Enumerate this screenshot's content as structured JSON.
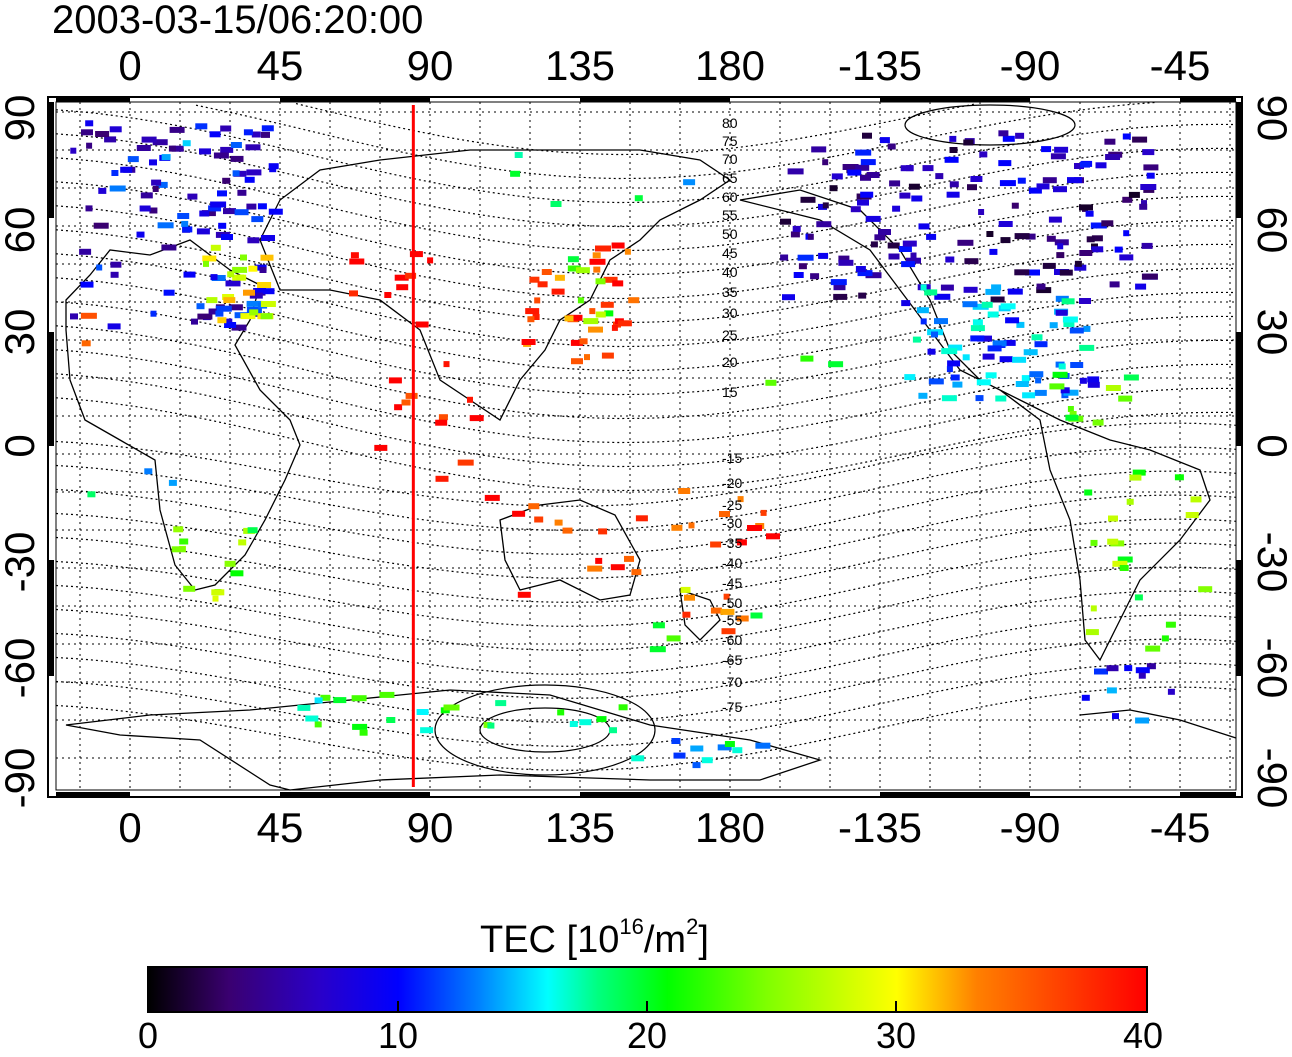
{
  "title": "2003-03-15/06:20:00",
  "lon_ticks_top": [
    "0",
    "45",
    "90",
    "135",
    "180",
    "-135",
    "-90",
    "-45"
  ],
  "lon_ticks_bottom": [
    "0",
    "45",
    "90",
    "135",
    "180",
    "-135",
    "-90",
    "-45"
  ],
  "lat_ticks_left": [
    "90",
    "60",
    "30",
    "0",
    "-30",
    "-60",
    "-90"
  ],
  "lat_ticks_right": [
    "90",
    "60",
    "30",
    "0",
    "-30",
    "-60",
    "-90"
  ],
  "contour_labels": [
    "80",
    "75",
    "70",
    "65",
    "60",
    "55",
    "50",
    "45",
    "40",
    "35",
    "30",
    "25",
    "20",
    "15",
    "-15",
    "-20",
    "-25",
    "-30",
    "-35",
    "-40",
    "-45",
    "-50",
    "-55",
    "-60",
    "-65",
    "-70",
    "-75"
  ],
  "marker_longitude": 85,
  "colorbar": {
    "title_main": "TEC  [10",
    "title_exp": "16",
    "title_mid": "/m",
    "title_exp2": "2",
    "title_end": "]",
    "ticks": [
      "0",
      "10",
      "20",
      "30",
      "40"
    ],
    "range": [
      0,
      40
    ]
  },
  "colors": {
    "marker_line": "#ff0000",
    "frame": "#000000"
  }
}
